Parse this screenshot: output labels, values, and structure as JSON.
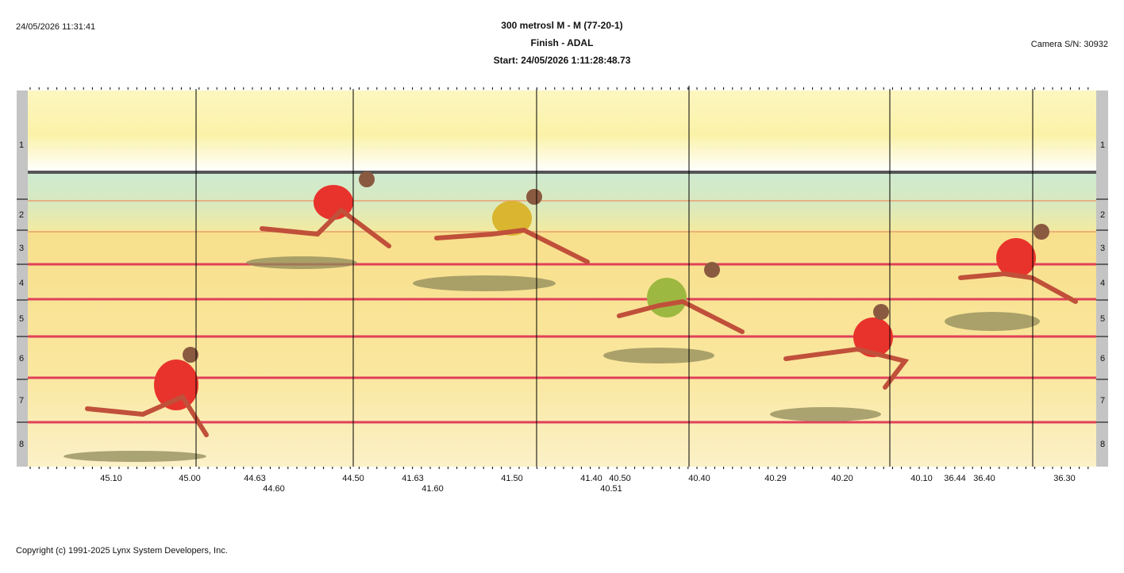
{
  "header": {
    "datetime": "24/05/2026 11:31:41",
    "title": "300 metrosl M - M (77-20-1)",
    "subtitle": "Finish - ADAL",
    "start": "Start: 24/05/2026 1:11:28:48.73",
    "camera": "Camera S/N: 30932"
  },
  "lanes": [
    "1",
    "2",
    "3",
    "4",
    "5",
    "6",
    "7",
    "8"
  ],
  "time_labels": [
    "45.10",
    "45.00",
    "44.63",
    "44.60",
    "44.50",
    "41.63",
    "41.60",
    "41.50",
    "41.40",
    "40.50",
    "40.51",
    "40.40",
    "40.29",
    "40.20",
    "40.10",
    "36.44",
    "36.40",
    "36.30"
  ],
  "footer": {
    "copyright": "Copyright (c) 1991-2025 Lynx System Developers, Inc."
  }
}
